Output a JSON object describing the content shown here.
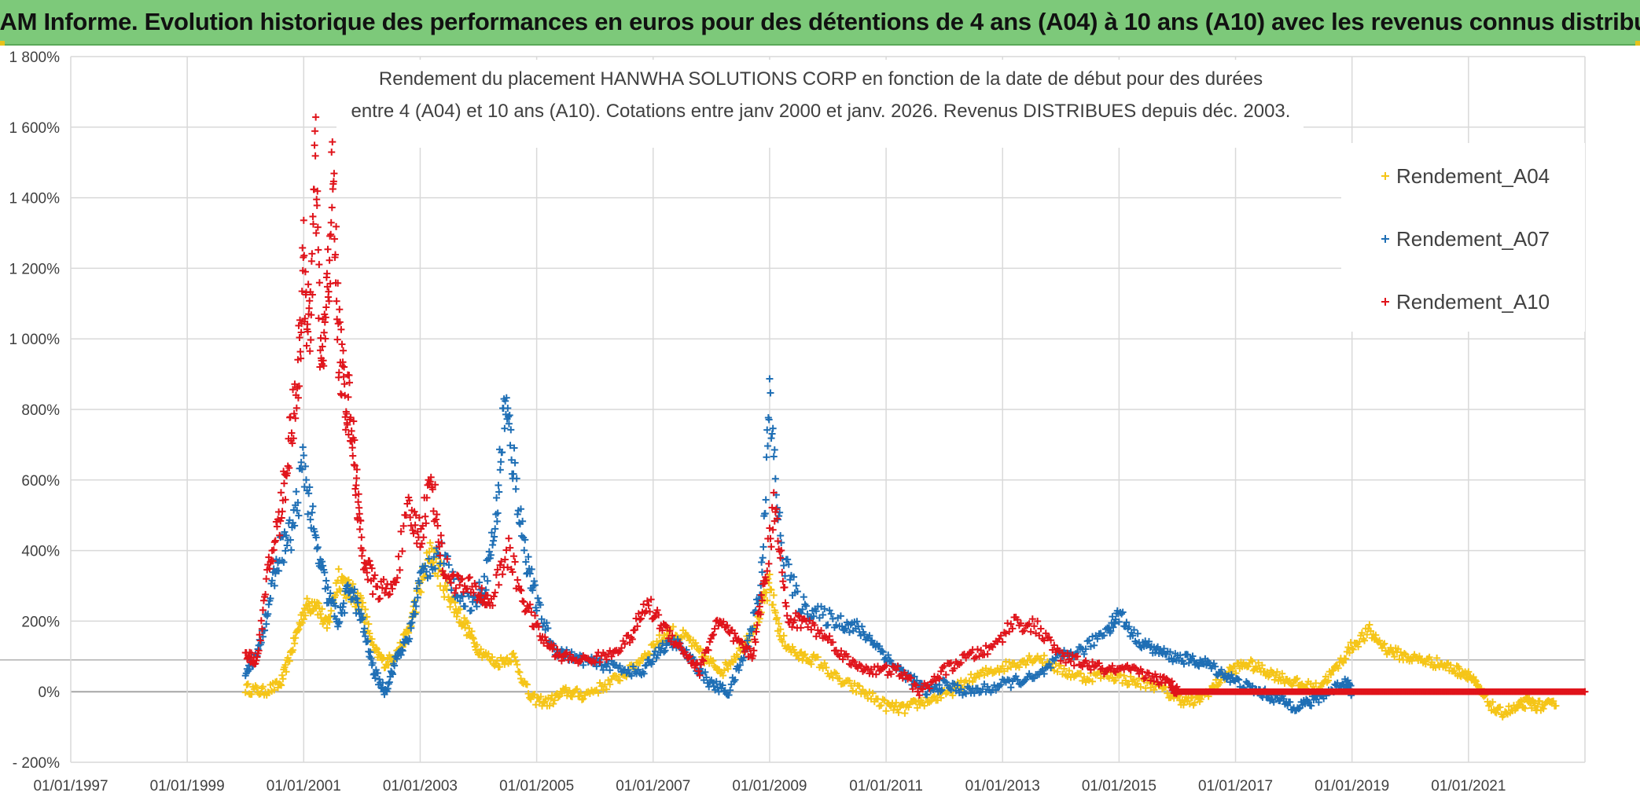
{
  "banner": {
    "title": "ADAM Informe. Evolution historique des performances en euros pour des détentions de 4 ans (A04) à 10 ans (A10) avec les revenus connus distribués"
  },
  "colors": {
    "banner_bg": "#7dc97a",
    "A04": "#f5c518",
    "A07": "#1f6fb5",
    "A10": "#e0141b",
    "grid": "#d9d9d9",
    "zero_line": "#a6a6a6"
  },
  "chart_data": {
    "type": "scatter",
    "title_lines": [
      "Rendement du placement HANWHA SOLUTIONS CORP en fonction de la date de début pour des durées",
      "entre 4 (A04) et 10 ans (A10). Cotations entre janv 2000 et janv. 2026. Revenus DISTRIBUES depuis déc. 2003."
    ],
    "x_axis": {
      "unit": "year",
      "range": [
        1997.0,
        2023.0
      ],
      "ticks": [
        1997,
        1999,
        2001,
        2003,
        2005,
        2007,
        2009,
        2011,
        2013,
        2015,
        2017,
        2019,
        2021
      ],
      "tick_labels": [
        "01/01/1997",
        "01/01/1999",
        "01/01/2001",
        "01/01/2003",
        "01/01/2005",
        "01/01/2007",
        "01/01/2009",
        "01/01/2011",
        "01/01/2013",
        "01/01/2015",
        "01/01/2017",
        "01/01/2019",
        "01/01/2021"
      ]
    },
    "y_axis": {
      "unit": "percent",
      "range": [
        -200,
        1800
      ],
      "ticks": [
        -200,
        0,
        200,
        400,
        600,
        800,
        1000,
        1200,
        1400,
        1600,
        1800
      ],
      "tick_labels": [
        "- 200%",
        "0%",
        "200%",
        "400%",
        "600%",
        "800%",
        "1 000%",
        "1 200%",
        "1 400%",
        "1 600%",
        "1 800%"
      ]
    },
    "legend": {
      "position": "top-right",
      "marker": "+"
    },
    "series": [
      {
        "name": "Rendement_A04",
        "color": "#f5c518",
        "x": [
          2000.0,
          2000.3,
          2000.6,
          2000.8,
          2001.0,
          2001.2,
          2001.4,
          2001.6,
          2001.8,
          2002.0,
          2002.2,
          2002.4,
          2002.6,
          2002.8,
          2003.0,
          2003.2,
          2003.4,
          2003.6,
          2003.8,
          2004.0,
          2004.3,
          2004.6,
          2004.9,
          2005.2,
          2005.5,
          2005.8,
          2006.2,
          2006.6,
          2007.0,
          2007.3,
          2007.6,
          2007.9,
          2008.2,
          2008.5,
          2008.8,
          2009.0,
          2009.2,
          2009.5,
          2009.8,
          2010.2,
          2010.6,
          2011.0,
          2011.3,
          2011.6,
          2012.0,
          2012.4,
          2012.8,
          2013.2,
          2013.6,
          2014.0,
          2014.4,
          2014.8,
          2015.2,
          2015.6,
          2016.0,
          2016.3,
          2016.6,
          2016.9,
          2017.2,
          2017.5,
          2017.8,
          2018.1,
          2018.4,
          2018.7,
          2019.0,
          2019.3,
          2019.6,
          2019.9,
          2020.2,
          2020.5,
          2020.8,
          2021.0,
          2021.2,
          2021.5,
          2021.8,
          2022.0,
          2022.2,
          2022.5
        ],
        "y": [
          10,
          0,
          20,
          120,
          230,
          260,
          180,
          330,
          280,
          250,
          120,
          80,
          110,
          170,
          300,
          400,
          310,
          240,
          180,
          120,
          80,
          100,
          -20,
          -30,
          0,
          -10,
          20,
          60,
          130,
          170,
          150,
          90,
          60,
          120,
          210,
          300,
          150,
          100,
          90,
          30,
          0,
          -40,
          -50,
          -30,
          -10,
          30,
          60,
          80,
          100,
          60,
          40,
          50,
          30,
          20,
          -20,
          -30,
          10,
          60,
          80,
          60,
          40,
          20,
          10,
          60,
          130,
          170,
          120,
          100,
          90,
          80,
          60,
          50,
          0,
          -60,
          -50,
          -30,
          -40,
          -40
        ]
      },
      {
        "name": "Rendement_A07",
        "color": "#1f6fb5",
        "x": [
          2000.0,
          2000.2,
          2000.4,
          2000.6,
          2000.8,
          2001.0,
          2001.2,
          2001.4,
          2001.6,
          2001.8,
          2002.0,
          2002.2,
          2002.4,
          2002.6,
          2002.8,
          2003.0,
          2003.3,
          2003.6,
          2003.9,
          2004.1,
          2004.3,
          2004.45,
          2004.6,
          2004.8,
          2005.0,
          2005.3,
          2005.6,
          2006.0,
          2006.4,
          2006.8,
          2007.1,
          2007.4,
          2007.7,
          2008.0,
          2008.3,
          2008.6,
          2008.85,
          2009.0,
          2009.2,
          2009.5,
          2009.8,
          2010.2,
          2010.5,
          2010.8,
          2011.1,
          2011.4,
          2011.7,
          2012.0,
          2012.4,
          2012.8,
          2013.2,
          2013.6,
          2014.0,
          2014.4,
          2014.8,
          2015.0,
          2015.3,
          2015.6,
          2015.9,
          2016.2,
          2016.5,
          2016.8,
          2017.1,
          2017.4,
          2017.7,
          2018.0,
          2018.3,
          2018.6,
          2018.9,
          2019.0
        ],
        "y": [
          60,
          100,
          250,
          400,
          450,
          650,
          420,
          280,
          200,
          300,
          200,
          60,
          0,
          100,
          150,
          320,
          400,
          300,
          250,
          300,
          480,
          820,
          650,
          400,
          250,
          120,
          100,
          80,
          70,
          50,
          120,
          140,
          80,
          20,
          0,
          120,
          300,
          820,
          400,
          250,
          220,
          200,
          180,
          140,
          80,
          40,
          0,
          20,
          0,
          10,
          30,
          40,
          100,
          120,
          180,
          220,
          150,
          120,
          100,
          90,
          80,
          50,
          20,
          0,
          -20,
          -40,
          -30,
          0,
          30,
          0
        ]
      },
      {
        "name": "Rendement_A10",
        "color": "#e0141b",
        "x": [
          2000.0,
          2000.2,
          2000.4,
          2000.6,
          2000.75,
          2000.9,
          2001.0,
          2001.1,
          2001.2,
          2001.3,
          2001.4,
          2001.5,
          2001.6,
          2001.7,
          2001.8,
          2001.9,
          2002.0,
          2002.2,
          2002.5,
          2002.8,
          2003.0,
          2003.2,
          2003.4,
          2003.7,
          2004.0,
          2004.2,
          2004.5,
          2004.8,
          2005.1,
          2005.4,
          2005.8,
          2006.2,
          2006.6,
          2006.9,
          2007.2,
          2007.5,
          2007.8,
          2008.1,
          2008.4,
          2008.7,
          2008.9,
          2009.1,
          2009.3,
          2009.6,
          2010.0,
          2010.4,
          2010.8,
          2011.2,
          2011.6,
          2012.0,
          2012.4,
          2012.8,
          2013.2,
          2013.6,
          2014.0,
          2014.4,
          2014.8,
          2015.2,
          2015.6,
          2015.9,
          2016.0
        ],
        "y": [
          100,
          90,
          350,
          500,
          700,
          900,
          1200,
          1000,
          1500,
          900,
          1100,
          1450,
          1000,
          850,
          800,
          600,
          400,
          300,
          280,
          500,
          450,
          600,
          350,
          300,
          280,
          250,
          400,
          250,
          150,
          100,
          90,
          100,
          150,
          250,
          180,
          120,
          60,
          200,
          150,
          100,
          300,
          550,
          200,
          200,
          150,
          80,
          60,
          60,
          0,
          60,
          100,
          120,
          200,
          180,
          100,
          80,
          60,
          60,
          40,
          20,
          0
        ]
      },
      {
        "name": "Rendement_A10 (flat)",
        "color": "#e0141b",
        "x": [
          2016.0,
          2016.5,
          2017.0,
          2017.5,
          2018.0,
          2018.5,
          2019.0,
          2019.5,
          2020.0,
          2020.5,
          2021.0,
          2021.5,
          2022.0,
          2022.5,
          2023.0
        ],
        "y": [
          0,
          0,
          0,
          0,
          0,
          0,
          0,
          0,
          0,
          0,
          0,
          0,
          0,
          0,
          0
        ]
      }
    ]
  }
}
